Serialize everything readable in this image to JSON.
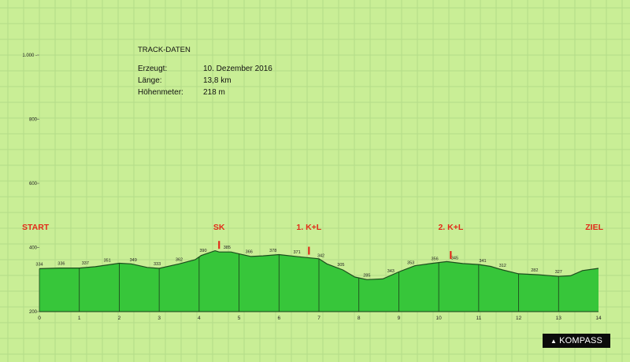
{
  "track_info": {
    "title": "TRACK-DATEN",
    "rows": [
      {
        "label": "Erzeugt:",
        "value": "10. Dezember 2016"
      },
      {
        "label": "Länge:",
        "value": "13,8 km"
      },
      {
        "label": "Höhenmeter:",
        "value": "218 m"
      }
    ]
  },
  "brand": {
    "label": "KOMPASS",
    "icon": "arrow-icon"
  },
  "colors": {
    "background": "#c9ee96",
    "grid": "#b4dc88",
    "fill": "#37c63a",
    "outline": "#1d4d1d",
    "marker": "#e22b1a"
  },
  "chart_data": {
    "type": "area",
    "title": "",
    "xlabel": "",
    "ylabel": "",
    "xlim": [
      0,
      14
    ],
    "ylim": [
      200,
      1000
    ],
    "x_ticks": [
      "0",
      "1",
      "2",
      "3",
      "4",
      "5",
      "6",
      "7",
      "8",
      "9",
      "10",
      "11",
      "12",
      "13",
      "14"
    ],
    "y_ticks": [
      {
        "value": 200,
        "label": "200"
      },
      {
        "value": 400,
        "label": "400"
      },
      {
        "value": 600,
        "label": "600"
      },
      {
        "value": 800,
        "label": "800"
      },
      {
        "value": 1000,
        "label": "1.000 -"
      }
    ],
    "grid": true,
    "profile": [
      [
        0,
        334
      ],
      [
        0.5,
        336
      ],
      [
        1.0,
        336
      ],
      [
        1.4,
        340
      ],
      [
        2.0,
        351
      ],
      [
        2.3,
        349
      ],
      [
        2.7,
        338
      ],
      [
        3.0,
        335
      ],
      [
        3.5,
        349
      ],
      [
        3.9,
        362
      ],
      [
        4.05,
        375
      ],
      [
        4.4,
        390
      ],
      [
        4.5,
        386
      ],
      [
        4.8,
        386
      ],
      [
        5.0,
        380
      ],
      [
        5.3,
        372
      ],
      [
        5.6,
        374
      ],
      [
        6.0,
        378
      ],
      [
        6.5,
        371
      ],
      [
        7.0,
        365
      ],
      [
        7.2,
        349
      ],
      [
        7.6,
        330
      ],
      [
        7.9,
        308
      ],
      [
        8.2,
        300
      ],
      [
        8.6,
        302
      ],
      [
        9.0,
        324
      ],
      [
        9.4,
        343
      ],
      [
        9.8,
        350
      ],
      [
        10.2,
        356
      ],
      [
        10.6,
        350
      ],
      [
        11.0,
        347
      ],
      [
        11.3,
        341
      ],
      [
        11.6,
        330
      ],
      [
        12.0,
        318
      ],
      [
        12.5,
        315
      ],
      [
        13.0,
        310
      ],
      [
        13.3,
        312
      ],
      [
        13.6,
        328
      ],
      [
        14.0,
        335
      ]
    ],
    "waypoint_lines": [
      0,
      1,
      2,
      3,
      4,
      5,
      6,
      7,
      8,
      9,
      10,
      11,
      12,
      13
    ],
    "elevation_labels": [
      {
        "x": 0.0,
        "y": 334,
        "label": "334"
      },
      {
        "x": 0.55,
        "y": 336,
        "label": "336"
      },
      {
        "x": 1.15,
        "y": 337,
        "label": "337"
      },
      {
        "x": 1.7,
        "y": 351,
        "label": "351"
      },
      {
        "x": 2.35,
        "y": 349,
        "label": "349"
      },
      {
        "x": 2.95,
        "y": 333,
        "label": "333"
      },
      {
        "x": 3.5,
        "y": 362,
        "label": "362"
      },
      {
        "x": 4.1,
        "y": 390,
        "label": "390"
      },
      {
        "x": 4.7,
        "y": 385,
        "label": "385"
      },
      {
        "x": 5.25,
        "y": 366,
        "label": "366"
      },
      {
        "x": 5.85,
        "y": 378,
        "label": "378"
      },
      {
        "x": 6.45,
        "y": 371,
        "label": "371"
      },
      {
        "x": 7.05,
        "y": 342,
        "label": "342"
      },
      {
        "x": 7.55,
        "y": 305,
        "label": "305"
      },
      {
        "x": 8.2,
        "y": 285,
        "label": "285"
      },
      {
        "x": 8.8,
        "y": 343,
        "label": "343"
      },
      {
        "x": 9.3,
        "y": 353,
        "label": "353"
      },
      {
        "x": 9.9,
        "y": 356,
        "label": "356"
      },
      {
        "x": 10.4,
        "y": 345,
        "label": "345"
      },
      {
        "x": 11.1,
        "y": 341,
        "label": "341"
      },
      {
        "x": 11.6,
        "y": 312,
        "label": "312"
      },
      {
        "x": 12.4,
        "y": 282,
        "label": "282"
      },
      {
        "x": 13.0,
        "y": 327,
        "label": "327"
      }
    ],
    "annotations": [
      {
        "label": "START",
        "x": 0.2,
        "marker": false
      },
      {
        "label": "SK",
        "x": 4.5,
        "marker": true
      },
      {
        "label": "1. K+L",
        "x": 6.75,
        "marker": true
      },
      {
        "label": "2. K+L",
        "x": 10.3,
        "marker": true
      },
      {
        "label": "ZIEL",
        "x": 13.6,
        "marker": false
      }
    ]
  }
}
